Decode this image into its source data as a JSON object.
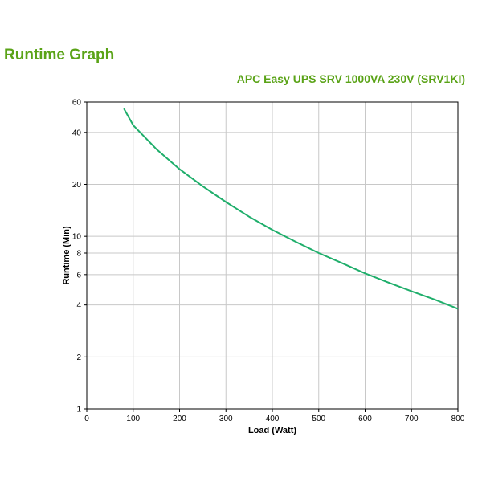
{
  "page": {
    "title": "Runtime Graph",
    "subtitle": "APC Easy UPS SRV 1000VA 230V (SRV1KI)"
  },
  "colors": {
    "brand_green": "#5aa317",
    "curve": "#1fae6b",
    "grid": "#c8c8c8"
  },
  "chart_data": {
    "type": "line",
    "title": "",
    "xlabel": "Load (Watt)",
    "ylabel": "Runtime (Min)",
    "xlim": [
      0,
      800
    ],
    "ylim": [
      1,
      60
    ],
    "yscale": "log",
    "x_ticks": [
      0,
      100,
      200,
      300,
      400,
      500,
      600,
      700,
      800
    ],
    "y_ticks": [
      1,
      2,
      4,
      6,
      8,
      10,
      20,
      40,
      60
    ],
    "grid": true,
    "legend": "none",
    "series": [
      {
        "x": [
          80,
          100,
          150,
          200,
          250,
          300,
          350,
          400,
          450,
          500,
          550,
          600,
          650,
          700,
          750,
          800
        ],
        "y": [
          55,
          44,
          32,
          24.5,
          19.5,
          15.8,
          13.0,
          10.9,
          9.3,
          8.0,
          7.0,
          6.1,
          5.4,
          4.8,
          4.3,
          3.8
        ]
      }
    ]
  }
}
